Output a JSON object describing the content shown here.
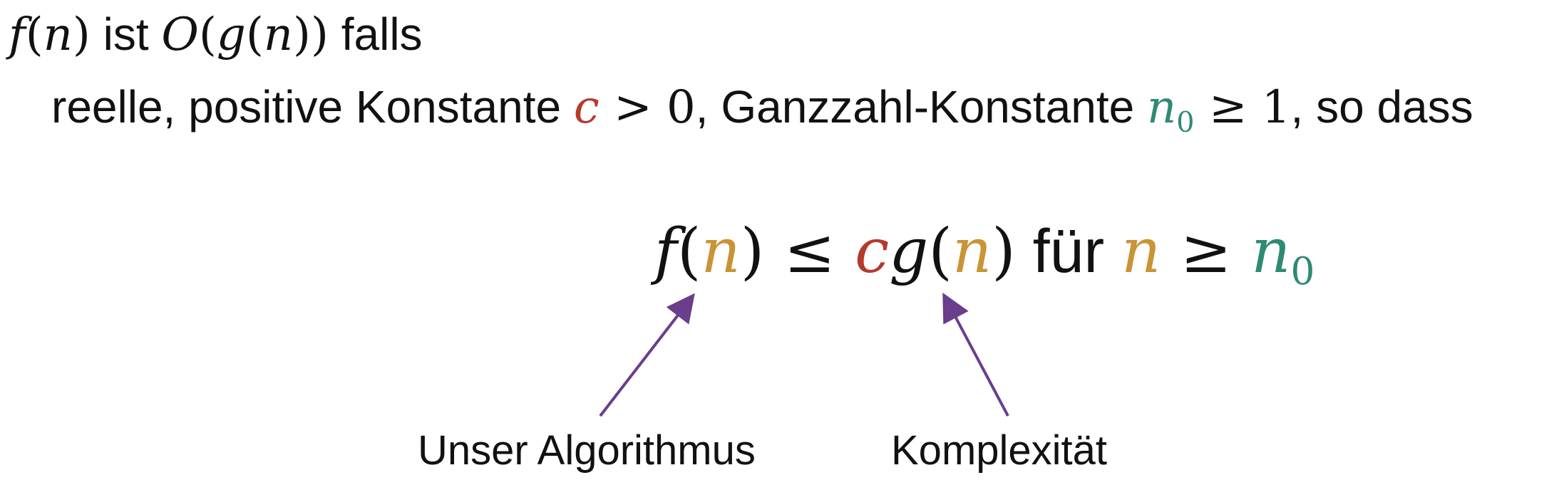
{
  "colors": {
    "text": "#111111",
    "c_const": "#b43a2c",
    "n_var": "#c99436",
    "n0_const": "#2f8a73",
    "arrow": "#6a3d8d"
  },
  "line1": {
    "f": "f",
    "open_paren1": "(",
    "n": "n",
    "close_paren1": ")",
    "ist": " ist ",
    "O": "O",
    "open_paren2": "(",
    "g": "g",
    "open_paren3": "(",
    "n2": "n",
    "close_paren3": "))",
    "falls": " falls"
  },
  "line2": {
    "prefix": "reelle, positive Konstante ",
    "c": "c",
    "gt_zero": " > 0",
    "middle": ", Ganzzahl-Konstante ",
    "n0_base": "n",
    "n0_sub": "0",
    "geq_one": " ≥ 1",
    "suffix": ", so dass"
  },
  "formula": {
    "f": "f",
    "open1": "(",
    "n1": "n",
    "close1": ")",
    "leq": " ≤ ",
    "c": "c",
    "g": "g",
    "open2": "(",
    "n2": "n",
    "close2": ")",
    "fuer": " für ",
    "n3": "n",
    "geq": " ≥ ",
    "n0_base": "n",
    "n0_sub": "0"
  },
  "labels": {
    "algorithm": "Unser Algorithmus",
    "complexity": "Komplexität"
  }
}
